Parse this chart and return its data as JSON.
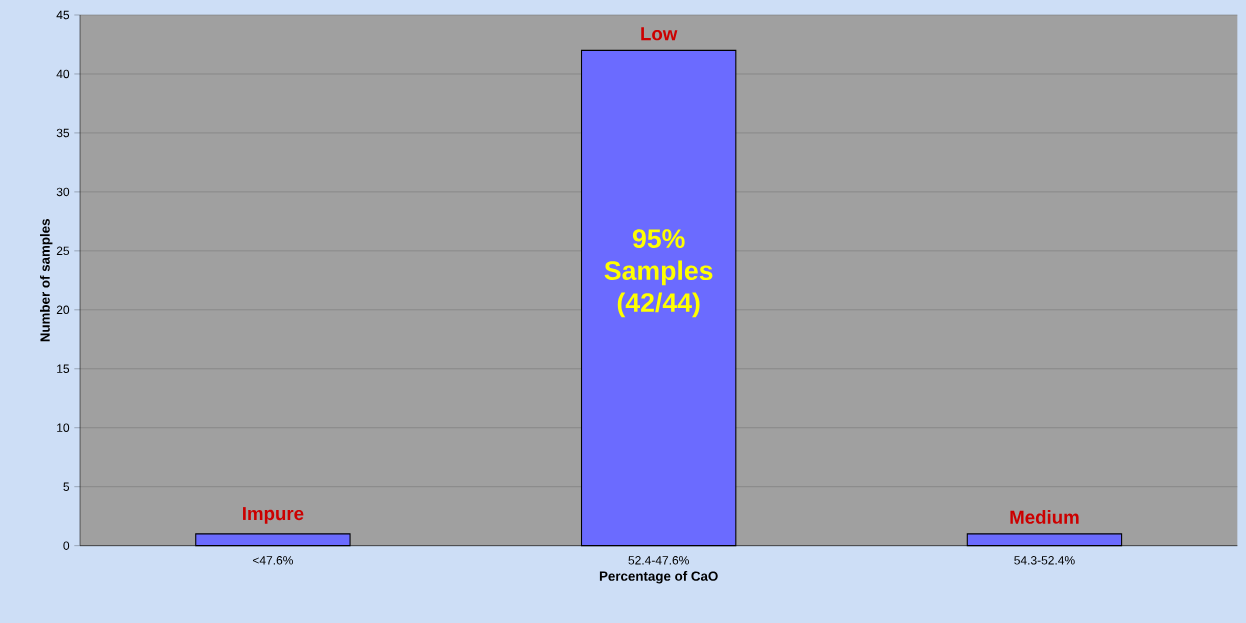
{
  "chart_data": {
    "type": "bar",
    "xlabel": "Percentage of CaO",
    "ylabel": "Number of samples",
    "categories": [
      "<47.6%",
      "52.4-47.6%",
      "54.3-52.4%"
    ],
    "values": [
      1,
      42,
      1
    ],
    "color": "#6b6bff",
    "ylim": [
      0,
      45
    ],
    "yticks": [
      0,
      5,
      10,
      15,
      20,
      25,
      30,
      35,
      40,
      45
    ],
    "grid": "y",
    "annotations": [
      {
        "text": "Impure",
        "x": "<47.6%",
        "y": 1
      },
      {
        "text": "Low",
        "x": "52.4-47.6%",
        "y": 42
      },
      {
        "text": "Medium",
        "x": "54.3-52.4%",
        "y": 1
      },
      "95% Samples (42/44)"
    ]
  }
}
